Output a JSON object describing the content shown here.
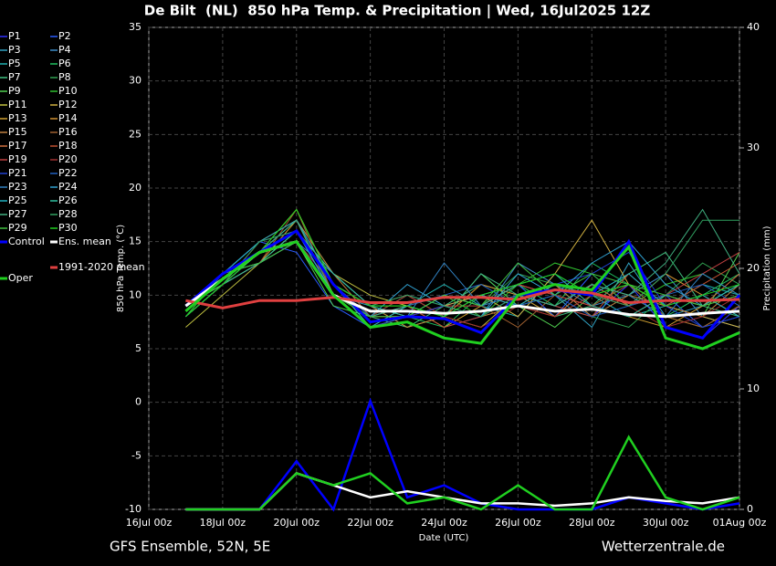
{
  "chart_data": {
    "type": "line",
    "title": "De Bilt  (NL)  850 hPa Temp. & Precipitation | Wed, 16Jul2025 12Z",
    "footer_left": "GFS Ensemble, 52N, 5E",
    "footer_right": "Wetterzentrale.de",
    "x_label": "Date (UTC)",
    "y_label": "850 hPa Temp. (°C)",
    "y2_label": "Precipitation (mm)",
    "x": [
      "17Jul 00z",
      "18Jul 00z",
      "19Jul 00z",
      "20Jul 00z",
      "21Jul 00z",
      "22Jul 00z",
      "23Jul 00z",
      "24Jul 00z",
      "25Jul 00z",
      "26Jul 00z",
      "27Jul 00z",
      "28Jul 00z",
      "29Jul 00z",
      "30Jul 00z",
      "31Jul 00z",
      "01Aug 00z"
    ],
    "xlim": [
      "16Jul 00z",
      "01Aug 00z"
    ],
    "xticks": [
      "16Jul 00z",
      "18Jul 00z",
      "20Jul 00z",
      "22Jul 00z",
      "24Jul 00z",
      "26Jul 00z",
      "28Jul 00z",
      "30Jul 00z",
      "01Aug 00z"
    ],
    "ylim": [
      -10,
      35
    ],
    "yticks": [
      -10,
      -5,
      0,
      5,
      10,
      15,
      20,
      25,
      30,
      35
    ],
    "y2lim": [
      0,
      40
    ],
    "y2ticks": [
      0,
      10,
      20,
      30,
      40
    ],
    "grid": true,
    "series": [
      {
        "name": "P1",
        "color": "#3030ff",
        "values": [
          8,
          11,
          14,
          16,
          11,
          8,
          9,
          7,
          8,
          10,
          9,
          8,
          11,
          7,
          6,
          9
        ]
      },
      {
        "name": "P2",
        "color": "#2a5cff",
        "values": [
          9,
          12,
          15,
          14,
          9,
          7,
          8,
          9,
          10,
          11,
          8,
          12,
          9,
          10,
          7,
          8
        ]
      },
      {
        "name": "P3",
        "color": "#30a0c0",
        "values": [
          8,
          11,
          13,
          15,
          10,
          9,
          7,
          8,
          12,
          9,
          10,
          7,
          13,
          8,
          9,
          11
        ]
      },
      {
        "name": "P4",
        "color": "#3c8cc8",
        "values": [
          9,
          12,
          14,
          15,
          11,
          8,
          10,
          9,
          8,
          13,
          11,
          9,
          10,
          12,
          8,
          7
        ]
      },
      {
        "name": "P5",
        "color": "#20b0b0",
        "values": [
          8,
          11,
          13,
          16,
          10,
          7,
          9,
          11,
          9,
          8,
          12,
          10,
          8,
          9,
          11,
          10
        ]
      },
      {
        "name": "P6",
        "color": "#20c060",
        "values": [
          8,
          12,
          14,
          17,
          12,
          9,
          8,
          7,
          10,
          11,
          9,
          13,
          11,
          8,
          10,
          12
        ]
      },
      {
        "name": "P7",
        "color": "#40c080",
        "values": [
          9,
          11,
          14,
          18,
          11,
          8,
          7,
          9,
          11,
          10,
          8,
          9,
          12,
          14,
          9,
          8
        ]
      },
      {
        "name": "P8",
        "color": "#30a050",
        "values": [
          8,
          12,
          15,
          16,
          10,
          7,
          8,
          10,
          9,
          12,
          11,
          8,
          7,
          10,
          13,
          11
        ]
      },
      {
        "name": "P9",
        "color": "#50d050",
        "values": [
          9,
          11,
          13,
          15,
          9,
          8,
          10,
          8,
          12,
          9,
          7,
          10,
          11,
          9,
          8,
          14
        ]
      },
      {
        "name": "P10",
        "color": "#30c030",
        "values": [
          8,
          12,
          14,
          17,
          11,
          9,
          9,
          10,
          8,
          11,
          13,
          12,
          9,
          11,
          12,
          10
        ]
      },
      {
        "name": "P11",
        "color": "#c0c040",
        "values": [
          7,
          10,
          13,
          16,
          12,
          10,
          9,
          8,
          7,
          10,
          9,
          11,
          10,
          8,
          7,
          9
        ]
      },
      {
        "name": "P12",
        "color": "#d0b040",
        "values": [
          8,
          11,
          14,
          18,
          11,
          7,
          8,
          9,
          10,
          8,
          12,
          17,
          11,
          9,
          8,
          7
        ]
      },
      {
        "name": "P13",
        "color": "#d0a030",
        "values": [
          9,
          12,
          13,
          17,
          10,
          8,
          9,
          7,
          9,
          11,
          10,
          9,
          8,
          7,
          9,
          10
        ]
      },
      {
        "name": "P14",
        "color": "#d09030",
        "values": [
          8,
          11,
          14,
          16,
          11,
          9,
          7,
          8,
          11,
          10,
          8,
          10,
          9,
          12,
          10,
          8
        ]
      },
      {
        "name": "P15",
        "color": "#c08040",
        "values": [
          9,
          12,
          15,
          17,
          12,
          8,
          8,
          9,
          8,
          9,
          11,
          8,
          10,
          9,
          8,
          11
        ]
      },
      {
        "name": "P16",
        "color": "#a06030",
        "values": [
          8,
          11,
          13,
          18,
          10,
          7,
          9,
          10,
          9,
          7,
          10,
          9,
          11,
          8,
          7,
          9
        ]
      },
      {
        "name": "P17",
        "color": "#d07040",
        "values": [
          9,
          12,
          14,
          16,
          11,
          9,
          10,
          8,
          10,
          9,
          8,
          11,
          9,
          10,
          9,
          12
        ]
      },
      {
        "name": "P18",
        "color": "#c05030",
        "values": [
          8,
          11,
          15,
          17,
          10,
          8,
          9,
          7,
          8,
          10,
          9,
          8,
          12,
          9,
          11,
          13
        ]
      },
      {
        "name": "P19",
        "color": "#c04040",
        "values": [
          9,
          12,
          14,
          16,
          12,
          9,
          8,
          9,
          9,
          11,
          10,
          9,
          8,
          10,
          12,
          14
        ]
      },
      {
        "name": "P20",
        "color": "#a03030",
        "values": [
          8,
          11,
          13,
          15,
          11,
          8,
          10,
          8,
          7,
          9,
          8,
          10,
          9,
          7,
          8,
          10
        ]
      },
      {
        "name": "P21",
        "color": "#2040d0",
        "values": [
          9,
          12,
          15,
          16,
          10,
          7,
          8,
          9,
          8,
          10,
          11,
          12,
          14,
          9,
          7,
          8
        ]
      },
      {
        "name": "P22",
        "color": "#2060c0",
        "values": [
          8,
          11,
          14,
          17,
          11,
          8,
          9,
          10,
          11,
          9,
          10,
          8,
          9,
          10,
          11,
          9
        ]
      },
      {
        "name": "P23",
        "color": "#3080c0",
        "values": [
          9,
          12,
          13,
          15,
          12,
          9,
          8,
          13,
          9,
          10,
          9,
          11,
          10,
          8,
          12,
          10
        ]
      },
      {
        "name": "P24",
        "color": "#30a0d0",
        "values": [
          8,
          11,
          14,
          16,
          10,
          8,
          11,
          9,
          8,
          12,
          10,
          13,
          15,
          11,
          9,
          11
        ]
      },
      {
        "name": "P25",
        "color": "#20b0c0",
        "values": [
          9,
          12,
          15,
          17,
          11,
          7,
          9,
          8,
          10,
          9,
          11,
          10,
          12,
          9,
          10,
          8
        ]
      },
      {
        "name": "P26",
        "color": "#30c0a0",
        "values": [
          8,
          11,
          13,
          16,
          12,
          9,
          8,
          10,
          9,
          11,
          12,
          9,
          8,
          10,
          9,
          11
        ]
      },
      {
        "name": "P27",
        "color": "#40b080",
        "values": [
          9,
          12,
          14,
          17,
          10,
          8,
          9,
          8,
          12,
          10,
          9,
          11,
          10,
          13,
          18,
          12
        ]
      },
      {
        "name": "P28",
        "color": "#30a060",
        "values": [
          8,
          11,
          15,
          16,
          11,
          9,
          10,
          9,
          8,
          10,
          11,
          10,
          9,
          12,
          17,
          17
        ]
      },
      {
        "name": "P29",
        "color": "#40c040",
        "values": [
          9,
          12,
          13,
          15,
          10,
          8,
          8,
          10,
          9,
          13,
          10,
          12,
          11,
          10,
          9,
          10
        ]
      },
      {
        "name": "P30",
        "color": "#20d020",
        "values": [
          8,
          11,
          14,
          18,
          11,
          9,
          9,
          8,
          10,
          11,
          12,
          10,
          11,
          9,
          10,
          11
        ]
      },
      {
        "name": "Control",
        "color": "#0000ff",
        "values": [
          9,
          12,
          14,
          16,
          11,
          7.5,
          8,
          7.8,
          6.5,
          10,
          10.5,
          10,
          15,
          7,
          6,
          10
        ],
        "precip": [
          0,
          0,
          0,
          4,
          0,
          9,
          1,
          2,
          0.5,
          0,
          0,
          0,
          1,
          0.5,
          0,
          0.5
        ]
      },
      {
        "name": "Ens. mean",
        "color": "#ffffff",
        "values": [
          9,
          11.5,
          14,
          15,
          10,
          8.5,
          8.5,
          8.3,
          8.5,
          9,
          8.5,
          8.7,
          8.2,
          8,
          8.3,
          8.5
        ],
        "precip": [
          0,
          0,
          0,
          3,
          2,
          1,
          1.5,
          1,
          0.5,
          0.5,
          0.3,
          0.5,
          1,
          0.7,
          0.5,
          1
        ]
      },
      {
        "name": "1991-2020 mean",
        "color": "#e04040",
        "values": [
          9.5,
          8.8,
          9.5,
          9.5,
          9.8,
          9.3,
          9.3,
          9.8,
          9.8,
          9.6,
          10.5,
          10.2,
          9.3,
          9.5,
          9.5,
          9.6
        ]
      },
      {
        "name": "Oper",
        "color": "#20d020",
        "values": [
          8.5,
          11.5,
          14,
          15,
          10,
          7,
          7.5,
          6,
          5.5,
          10,
          11,
          10.5,
          14.5,
          6,
          5,
          6.5
        ],
        "precip": [
          0,
          0,
          0,
          3,
          2,
          3,
          0.5,
          1,
          0,
          2,
          0,
          0,
          6,
          1,
          0,
          1
        ]
      }
    ]
  }
}
